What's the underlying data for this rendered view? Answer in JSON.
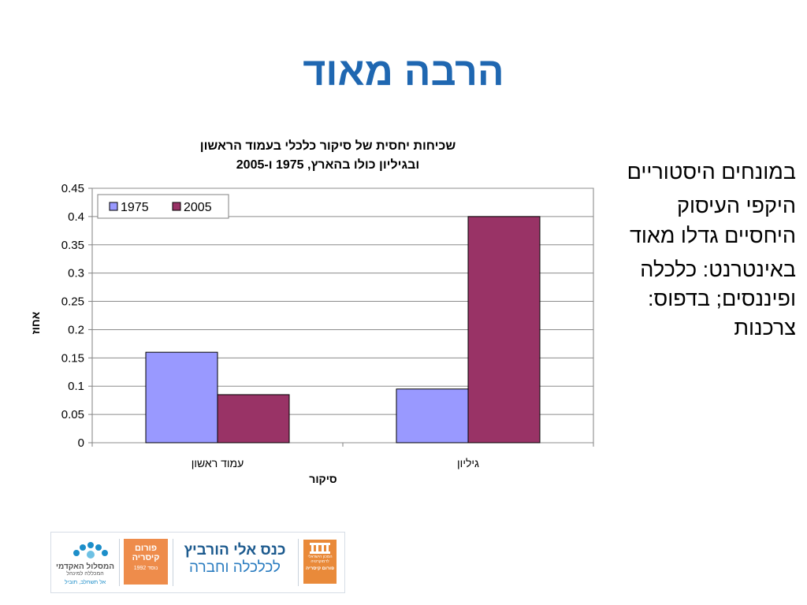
{
  "slide": {
    "title": "הרבה מאוד",
    "bullets": [
      "במונחים היסטוריים",
      "היקפי העיסוק היחסיים גדלו מאוד",
      "באינטרנט: כלכלה ופיננסים; בדפוס: צרכנות"
    ]
  },
  "chart_data": {
    "type": "bar",
    "title_lines": [
      "שכיחות יחסית של סיקור כלכלי בעמוד הראשון",
      "ובגיליון כולו בהארץ, 1975 ו-2005"
    ],
    "categories": [
      "עמוד ראשון",
      "גיליון"
    ],
    "series": [
      {
        "name": "1975",
        "values": [
          0.16,
          0.095
        ],
        "color": "#9999ff"
      },
      {
        "name": "2005",
        "values": [
          0.085,
          0.4
        ],
        "color": "#993366"
      }
    ],
    "xlabel": "סיקור",
    "ylabel": "אחוז",
    "ylim": [
      0,
      0.45
    ],
    "yticks": [
      "0",
      "0.05",
      "0.1",
      "0.15",
      "0.2",
      "0.25",
      "0.3",
      "0.35",
      "0.4",
      "0.45"
    ],
    "grid": true,
    "legend": "top-left"
  },
  "footer": {
    "logo_academic_line1": "המסלול האקדמי",
    "logo_academic_line2": "המכללה למינהל",
    "logo_academic_line3": "אל תשחלב, תוביל",
    "logo_forum_line1": "פורום",
    "logo_forum_line2": "קיסריה",
    "logo_forum_line3": "נוסד 1992",
    "logo_conf_line1": "כנס אלי הורביץ",
    "logo_conf_line2": "לכלכלה וחברה",
    "logo_institute_line1": "המכון הישראלי",
    "logo_institute_line2": "לדמוקרטיה",
    "logo_institute_line3": "פורום קיסריה"
  }
}
